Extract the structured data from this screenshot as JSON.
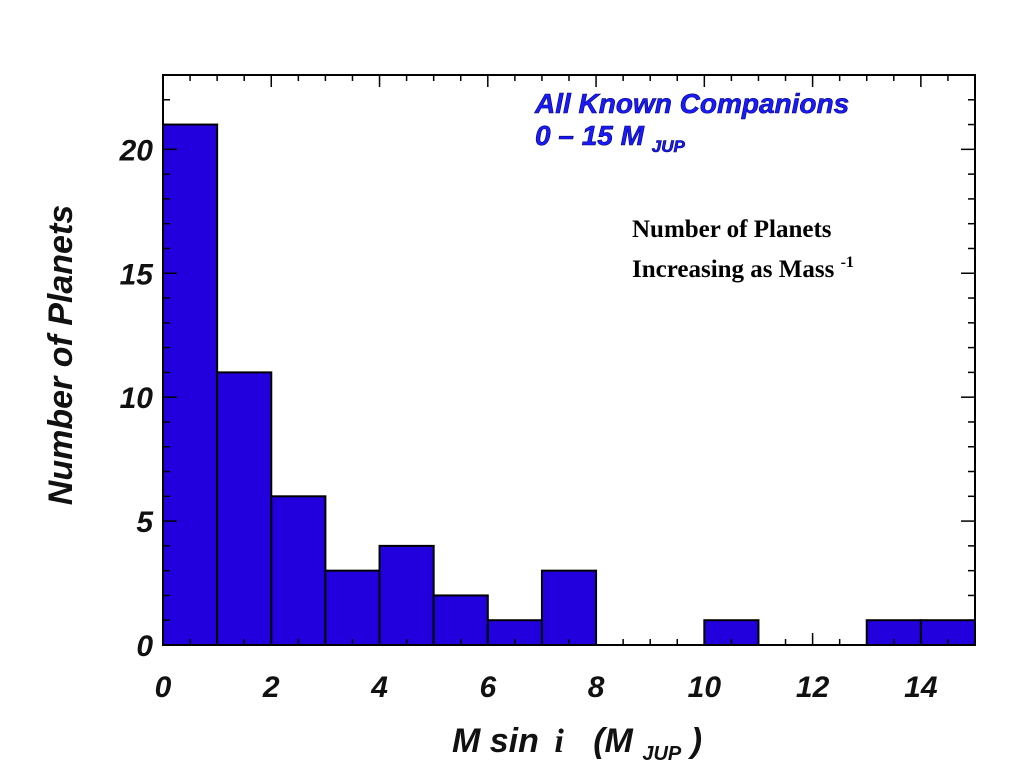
{
  "chart_data": {
    "type": "bar",
    "bins": [
      {
        "x0": 0,
        "x1": 1,
        "count": 21
      },
      {
        "x0": 1,
        "x1": 2,
        "count": 11
      },
      {
        "x0": 2,
        "x1": 3,
        "count": 6
      },
      {
        "x0": 3,
        "x1": 4,
        "count": 3
      },
      {
        "x0": 4,
        "x1": 5,
        "count": 4
      },
      {
        "x0": 5,
        "x1": 6,
        "count": 2
      },
      {
        "x0": 6,
        "x1": 7,
        "count": 1
      },
      {
        "x0": 7,
        "x1": 8,
        "count": 3
      },
      {
        "x0": 8,
        "x1": 9,
        "count": 0
      },
      {
        "x0": 9,
        "x1": 10,
        "count": 0
      },
      {
        "x0": 10,
        "x1": 11,
        "count": 1
      },
      {
        "x0": 11,
        "x1": 12,
        "count": 0
      },
      {
        "x0": 12,
        "x1": 13,
        "count": 0
      },
      {
        "x0": 13,
        "x1": 14,
        "count": 1
      },
      {
        "x0": 14,
        "x1": 15,
        "count": 1
      }
    ],
    "xlim": [
      0,
      15
    ],
    "ylim": [
      0,
      23
    ],
    "xticks": [
      0,
      2,
      4,
      6,
      8,
      10,
      12,
      14
    ],
    "yticks": [
      0,
      5,
      10,
      15,
      20
    ],
    "xlabel": {
      "main": "M sin",
      "italic_var": "i",
      "open": "(M",
      "sub": "JUP",
      "close": ")"
    },
    "ylabel": "Number of Planets",
    "legend": {
      "line1": "All Known Companions",
      "line2_main": "0 – 15 M",
      "line2_sub": "JUP",
      "placement": "top-right"
    },
    "annotation": {
      "line1": "Number of Planets",
      "line2_main": "Increasing as Mass",
      "line2_sup": "-1"
    },
    "colors": {
      "bar_fill": "#2200dd",
      "bar_stroke": "#000000",
      "legend_text": "#1a1aff",
      "axis": "#000000"
    },
    "grid": false
  }
}
